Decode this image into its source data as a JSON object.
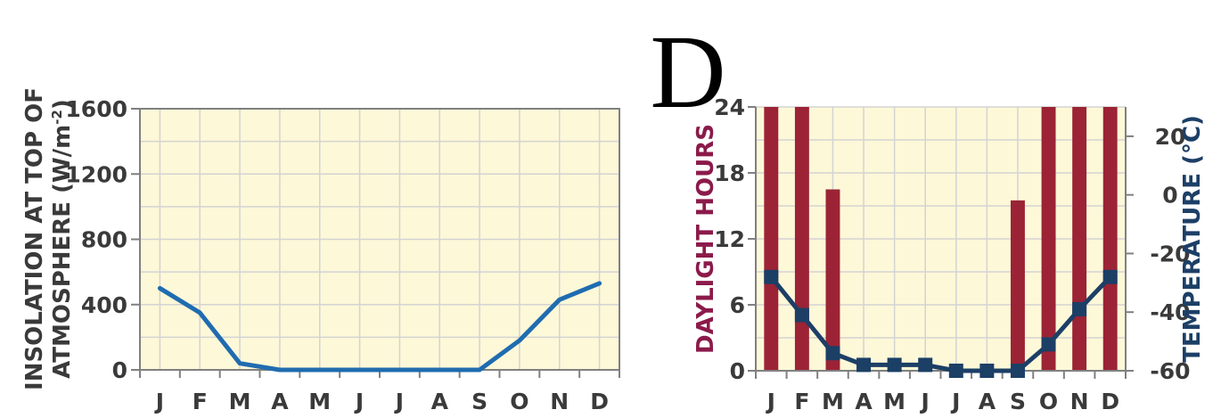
{
  "panel_letter": "D",
  "colors": {
    "plot_bg": "#fdf8d8",
    "grid": "#d3d3d3",
    "axis": "#808080",
    "insolation_line": "#1f6cb0",
    "daylight_bar": "#9b2335",
    "temperature_line": "#1c3f66",
    "daylight_label": "#8b1a4a",
    "temperature_label": "#1c3f66",
    "left_label": "#3a3a3a"
  },
  "chart_data": [
    {
      "type": "line",
      "categories": [
        "J",
        "F",
        "M",
        "A",
        "M",
        "J",
        "J",
        "A",
        "S",
        "O",
        "N",
        "D"
      ],
      "series": [
        {
          "values": [
            500,
            350,
            40,
            0,
            0,
            0,
            0,
            0,
            0,
            180,
            430,
            530
          ]
        }
      ],
      "ylabel_line1": "INSOLATION AT TOP OF",
      "ylabel_line2": "ATMOSPHERE (W/m",
      "ylabel_sup": "-2",
      "ylabel_end": ")",
      "ylim": [
        0,
        1600
      ],
      "yticks": [
        0,
        400,
        800,
        1200,
        1600
      ],
      "grid": true
    },
    {
      "type": "bar",
      "categories": [
        "J",
        "F",
        "M",
        "A",
        "M",
        "J",
        "J",
        "A",
        "S",
        "O",
        "N",
        "D"
      ],
      "series": [
        {
          "axis": "left",
          "values": [
            24,
            24,
            16.5,
            0,
            0,
            0,
            0,
            0,
            15.5,
            24,
            24,
            24
          ]
        },
        {
          "axis": "right",
          "values": [
            -28,
            -41,
            -54,
            -58,
            -58,
            -58,
            -60,
            -60,
            -60,
            -51,
            -39,
            -28
          ]
        }
      ],
      "ylabel": "DAYLIGHT HOURS",
      "ylim": [
        0,
        24
      ],
      "yticks": [
        0,
        6,
        12,
        18,
        24
      ],
      "y2label": "TEMPERATURE (°C)",
      "y2lim": [
        -60,
        30
      ],
      "y2ticks": [
        -60,
        -40,
        -20,
        0,
        20
      ],
      "grid": true
    }
  ]
}
